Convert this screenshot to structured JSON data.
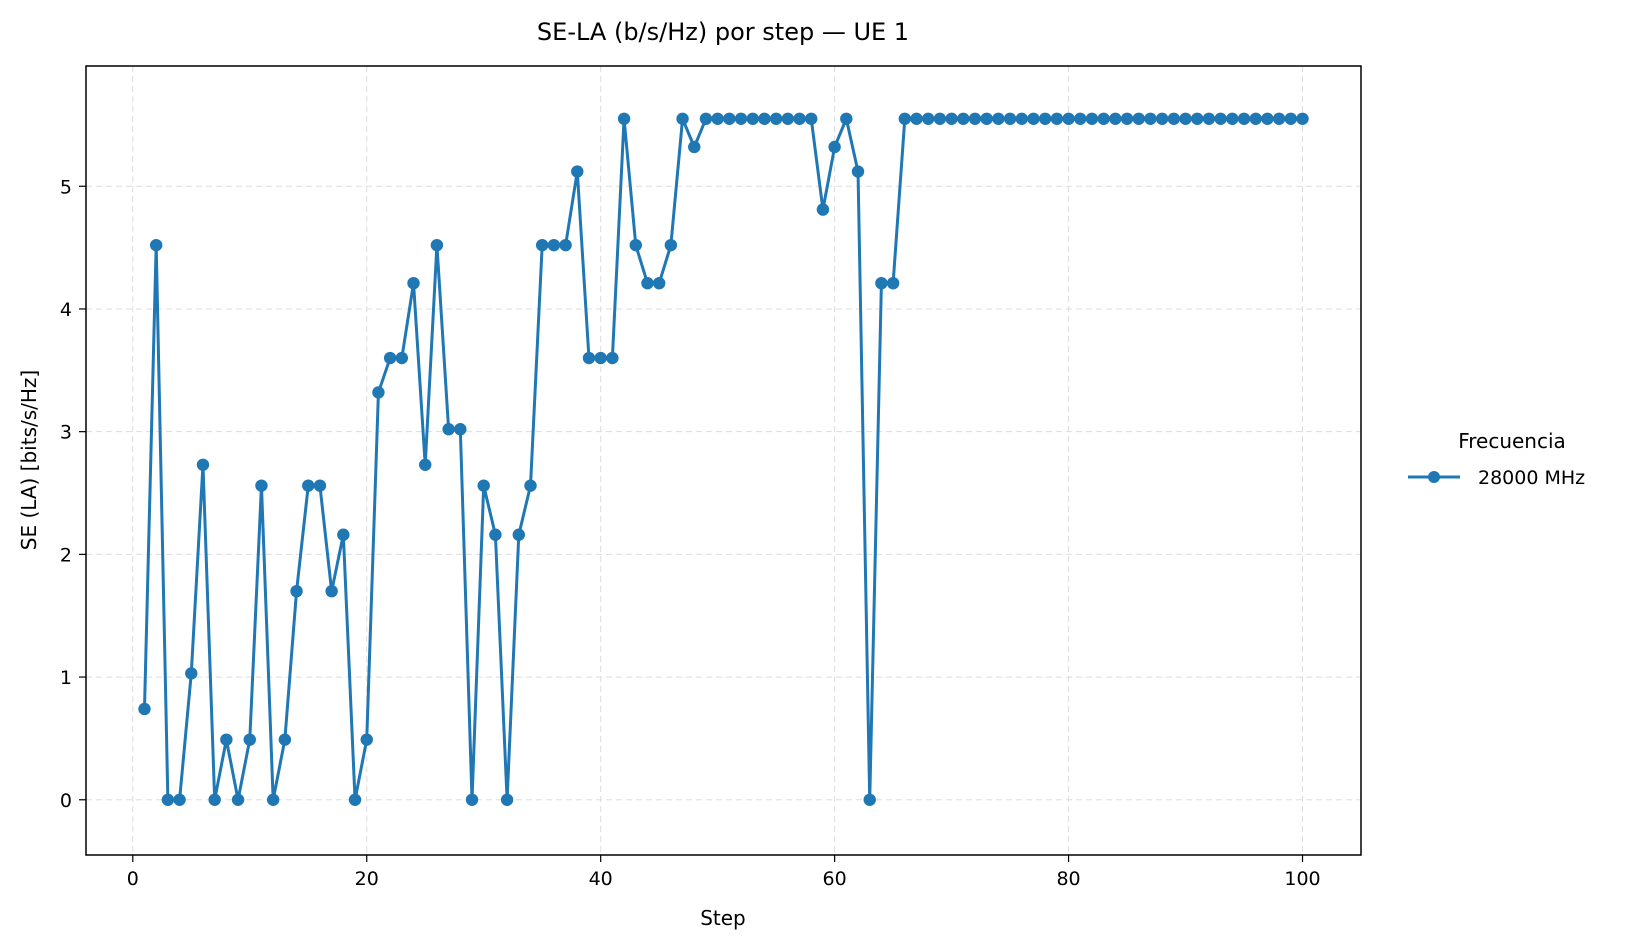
{
  "chart_data": {
    "type": "line",
    "title": "SE-LA (b/s/Hz) por step — UE 1",
    "xlabel": "Step",
    "ylabel": "SE (LA) [bits/s/Hz]",
    "xlim": [
      -4,
      105
    ],
    "ylim": [
      -0.45,
      5.98
    ],
    "xticks": [
      0,
      20,
      40,
      60,
      80,
      100
    ],
    "yticks": [
      0,
      1,
      2,
      3,
      4,
      5
    ],
    "grid": true,
    "legend": {
      "title": "Frecuencia",
      "placement": "right-outside"
    },
    "series": [
      {
        "name": "28000 MHz",
        "color": "#1f77b4",
        "marker": "circle",
        "x": [
          1,
          2,
          3,
          4,
          5,
          6,
          7,
          8,
          9,
          10,
          11,
          12,
          13,
          14,
          15,
          16,
          17,
          18,
          19,
          20,
          21,
          22,
          23,
          24,
          25,
          26,
          27,
          28,
          29,
          30,
          31,
          32,
          33,
          34,
          35,
          36,
          37,
          38,
          39,
          40,
          41,
          42,
          43,
          44,
          45,
          46,
          47,
          48,
          49,
          50,
          51,
          52,
          53,
          54,
          55,
          56,
          57,
          58,
          59,
          60,
          61,
          62,
          63,
          64,
          65,
          66,
          67,
          68,
          69,
          70,
          71,
          72,
          73,
          74,
          75,
          76,
          77,
          78,
          79,
          80,
          81,
          82,
          83,
          84,
          85,
          86,
          87,
          88,
          89,
          90,
          91,
          92,
          93,
          94,
          95,
          96,
          97,
          98,
          99,
          100
        ],
        "values": [
          0.74,
          4.52,
          0,
          0,
          1.03,
          2.73,
          0,
          0.49,
          0,
          0.49,
          2.56,
          0,
          0.49,
          1.7,
          2.56,
          2.56,
          1.7,
          2.16,
          0,
          0.49,
          3.32,
          3.6,
          3.6,
          4.21,
          2.73,
          4.52,
          3.02,
          3.02,
          0,
          2.56,
          2.16,
          0,
          2.16,
          2.56,
          4.52,
          4.52,
          4.52,
          5.12,
          3.6,
          3.6,
          3.6,
          5.55,
          4.52,
          4.21,
          4.21,
          4.52,
          5.55,
          5.32,
          5.55,
          5.55,
          5.55,
          5.55,
          5.55,
          5.55,
          5.55,
          5.55,
          5.55,
          5.55,
          4.81,
          5.32,
          5.55,
          5.12,
          0,
          4.21,
          4.21,
          5.55,
          5.55,
          5.55,
          5.55,
          5.55,
          5.55,
          5.55,
          5.55,
          5.55,
          5.55,
          5.55,
          5.55,
          5.55,
          5.55,
          5.55,
          5.55,
          5.55,
          5.55,
          5.55,
          5.55,
          5.55,
          5.55,
          5.55,
          5.55,
          5.55,
          5.55,
          5.55,
          5.55,
          5.55,
          5.55,
          5.55,
          5.55,
          5.55,
          5.55,
          5.55
        ]
      }
    ]
  }
}
